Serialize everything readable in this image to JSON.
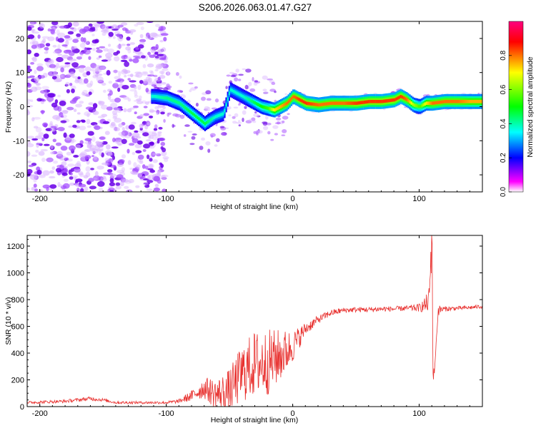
{
  "title": "S206.2026.063.01.47.G27",
  "chart_data": [
    {
      "type": "heatmap",
      "name": "spectrogram",
      "xlabel": "Height of straight line (km)",
      "ylabel": "Frequency (Hz)",
      "xlim": [
        -210,
        150
      ],
      "ylim": [
        -25,
        25
      ],
      "xticks": [
        -200,
        -100,
        0,
        100
      ],
      "yticks": [
        -20,
        -10,
        0,
        10,
        20
      ],
      "colorbar": {
        "label": "Normalized spectral amplitude",
        "range": [
          0.0,
          1.0
        ],
        "ticks": [
          0.0,
          0.2,
          0.4,
          0.6,
          0.8
        ],
        "tick_labels": [
          "0.0",
          "0.2",
          "0.4",
          "0.6",
          "0.8"
        ],
        "colors": [
          "#ffffff",
          "#ff00ff",
          "#0000ff",
          "#00ffff",
          "#00ff00",
          "#ffff00",
          "#ff0000",
          "#ff0080"
        ]
      },
      "ridge": {
        "x": [
          -110,
          -100,
          -90,
          -80,
          -70,
          -62,
          -55,
          -50,
          -45,
          -40,
          -35,
          -30,
          -25,
          -20,
          -15,
          -10,
          -5,
          0,
          5,
          10,
          20,
          30,
          40,
          50,
          60,
          70,
          80,
          85,
          90,
          95,
          100,
          105,
          110,
          120,
          130,
          140,
          150
        ],
        "y": [
          3,
          2.5,
          1,
          -2,
          -5,
          -3,
          -2,
          5,
          4,
          3,
          2,
          1,
          0,
          -0.5,
          -1,
          0,
          1,
          3,
          2,
          1,
          0.5,
          1,
          1,
          1,
          1.5,
          1.5,
          2,
          3,
          2,
          0.5,
          0,
          1,
          1,
          1.5,
          1.5,
          1.5,
          1.5
        ],
        "amplitude": [
          0.3,
          0.35,
          0.35,
          0.4,
          0.4,
          0.3,
          0.3,
          0.3,
          0.3,
          0.3,
          0.35,
          0.4,
          0.45,
          0.5,
          0.7,
          0.75,
          0.8,
          0.8,
          0.85,
          0.85,
          0.8,
          0.8,
          0.8,
          0.85,
          0.85,
          0.85,
          0.85,
          0.85,
          0.8,
          0.6,
          0.5,
          0.7,
          0.8,
          0.8,
          0.8,
          0.75,
          0.75
        ]
      },
      "noise_region_x": [
        -210,
        -100
      ]
    },
    {
      "type": "line",
      "name": "snr",
      "xlabel": "Height of straight line (km)",
      "ylabel": "SNR (10 * v/v)",
      "xlim": [
        -210,
        150
      ],
      "ylim": [
        0,
        1280
      ],
      "xticks": [
        -200,
        -100,
        0,
        100
      ],
      "yticks": [
        0,
        200,
        400,
        600,
        800,
        1000,
        1200
      ],
      "color": "#e8312f",
      "series": [
        {
          "name": "SNR envelope",
          "x": [
            -210,
            -180,
            -160,
            -150,
            -140,
            -120,
            -100,
            -90,
            -80,
            -70,
            -60,
            -50,
            -40,
            -30,
            -20,
            -10,
            0,
            10,
            20,
            30,
            40,
            50,
            60,
            70,
            80,
            90,
            100,
            105,
            108,
            109,
            110,
            111,
            112,
            115,
            120,
            130,
            140,
            150
          ],
          "values": [
            30,
            40,
            60,
            50,
            30,
            30,
            30,
            40,
            80,
            140,
            90,
            120,
            250,
            320,
            330,
            380,
            450,
            580,
            650,
            700,
            720,
            725,
            725,
            730,
            730,
            735,
            740,
            760,
            800,
            1060,
            1280,
            350,
            250,
            720,
            730,
            735,
            740,
            750
          ],
          "noise_amplitude": [
            10,
            12,
            15,
            12,
            10,
            10,
            10,
            15,
            40,
            80,
            120,
            160,
            220,
            250,
            250,
            200,
            120,
            50,
            30,
            25,
            20,
            20,
            20,
            20,
            20,
            20,
            30,
            60,
            100,
            120,
            0,
            0,
            0,
            40,
            20,
            15,
            15,
            15
          ]
        }
      ]
    }
  ]
}
